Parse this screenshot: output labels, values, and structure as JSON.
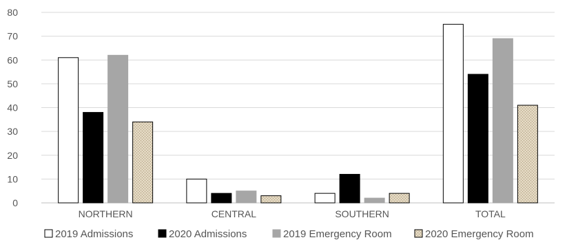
{
  "chart_data": {
    "type": "bar",
    "categories": [
      "NORTHERN",
      "CENTRAL",
      "SOUTHERN",
      "TOTAL"
    ],
    "series": [
      {
        "name": "2019 Admissions",
        "values": [
          61,
          10,
          4,
          75
        ],
        "fill": "#ffffff",
        "stroke": "#000000"
      },
      {
        "name": "2020 Admissions",
        "values": [
          38,
          4,
          12,
          54
        ],
        "fill": "#000000",
        "stroke": "#000000"
      },
      {
        "name": "2019 Emergency Room",
        "values": [
          62,
          5,
          2,
          69
        ],
        "fill": "#a6a6a6",
        "stroke": "#a6a6a6"
      },
      {
        "name": "2020 Emergency Room",
        "values": [
          34,
          3,
          4,
          41
        ],
        "fill": "#d8ccb4",
        "stroke": "#000000",
        "pattern": "burlap-texture"
      }
    ],
    "ylim": [
      0,
      80
    ],
    "yticks": [
      "0",
      "10",
      "20",
      "30",
      "40",
      "50",
      "60",
      "70",
      "80"
    ],
    "grid": true,
    "legend_position": "bottom"
  }
}
